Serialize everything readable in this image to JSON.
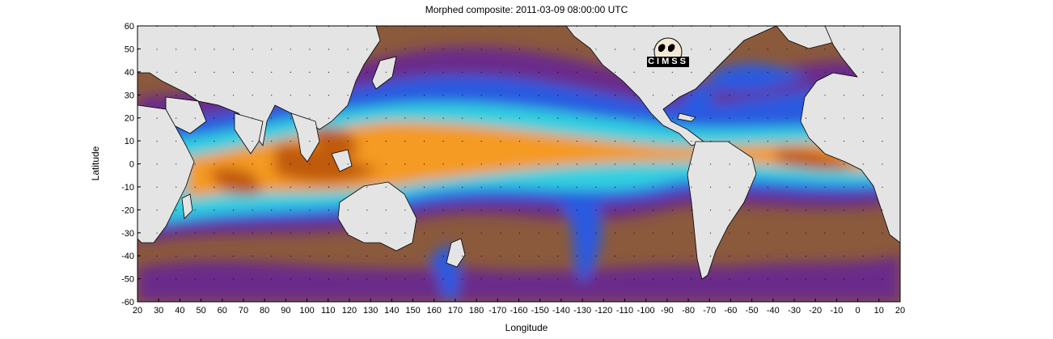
{
  "map": {
    "title": "Morphed composite: 2011-03-09 08:00:00 UTC",
    "xlabel": "Longitude",
    "ylabel": "Latitude",
    "x_ticks": [
      "20",
      "30",
      "40",
      "50",
      "60",
      "70",
      "80",
      "90",
      "100",
      "110",
      "120",
      "130",
      "140",
      "150",
      "160",
      "170",
      "180",
      "-170",
      "-160",
      "-150",
      "-140",
      "-130",
      "-120",
      "-110",
      "-100",
      "-90",
      "-80",
      "-70",
      "-60",
      "-50",
      "-40",
      "-30",
      "-20",
      "-10",
      "0",
      "10",
      "20"
    ],
    "y_ticks": [
      "60",
      "50",
      "40",
      "30",
      "20",
      "10",
      "0",
      "-10",
      "-20",
      "-30",
      "-40",
      "-50",
      "-60"
    ],
    "logo_text": "CIMSS",
    "colors": {
      "land": "#e4e4e4",
      "dry": "#8b5a3c",
      "low": "#6a2a8a",
      "moderate": "#2a5ae0",
      "medium": "#30d0e0",
      "high": "#f59a20",
      "very_high": "#c05a10"
    }
  }
}
